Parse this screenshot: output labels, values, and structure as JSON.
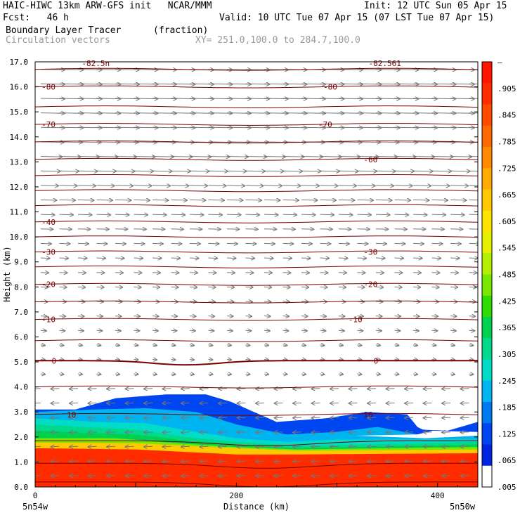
{
  "header": {
    "line1_left": "HAIC-HIWC 13km ARW-GFS init   NCAR/MMM",
    "line1_right": "Init: 12 UTC Sun 05 Apr 15",
    "line2_left": "Fcst:   46 h",
    "line2_right": "Valid: 10 UTC Tue 07 Apr 15 (07 LST Tue 07 Apr 15)",
    "line3_left": "Boundary Layer Tracer",
    "line3_mid": "(fraction)",
    "line4_left": "Circulation vectors",
    "line4_mid": "XY= 251.0,100.0 to 284.7,100.0"
  },
  "chart_data": {
    "type": "cross-section",
    "xlabel": "Distance (km)",
    "ylabel": "Height (km)",
    "xlim": [
      0,
      440
    ],
    "ylim": [
      0,
      17
    ],
    "x_ticks": [
      {
        "value": 0,
        "label": "0"
      },
      {
        "value": 200,
        "label": "200"
      },
      {
        "value": 400,
        "label": "400"
      }
    ],
    "x_end_labels": {
      "left": "5n54w",
      "right": "5n50w"
    },
    "y_ticks": [
      {
        "value": 0,
        "label": "0.0"
      },
      {
        "value": 1,
        "label": "1.0"
      },
      {
        "value": 2,
        "label": "2.0"
      },
      {
        "value": 3,
        "label": "3.0"
      },
      {
        "value": 4,
        "label": "4.0"
      },
      {
        "value": 5,
        "label": "5.0"
      },
      {
        "value": 6,
        "label": "6.0"
      },
      {
        "value": 7,
        "label": "7.0"
      },
      {
        "value": 8,
        "label": "8.0"
      },
      {
        "value": 9,
        "label": "9.0"
      },
      {
        "value": 10,
        "label": "10.0"
      },
      {
        "value": 11,
        "label": "11.0"
      },
      {
        "value": 12,
        "label": "12.0"
      },
      {
        "value": 13,
        "label": "13.0"
      },
      {
        "value": 14,
        "label": "14.0"
      },
      {
        "value": 15,
        "label": "15.0"
      },
      {
        "value": 16,
        "label": "16.0"
      },
      {
        "value": 17,
        "label": "17.0"
      }
    ],
    "colorbar": {
      "labels": [
        "–",
        ".905",
        ".845",
        ".785",
        ".725",
        ".665",
        ".605",
        ".545",
        ".485",
        ".425",
        ".365",
        ".305",
        ".245",
        ".185",
        ".125",
        ".065",
        ".005"
      ],
      "colors": [
        "#ff1500",
        "#ff2c00",
        "#ff4a00",
        "#ff6a00",
        "#ff8a00",
        "#ffaa00",
        "#ffc800",
        "#ffe400",
        "#e6f000",
        "#b4ee00",
        "#78e800",
        "#30dc00",
        "#00d050",
        "#00d88c",
        "#00dcc8",
        "#00b4f0",
        "#0078f0",
        "#0046f0",
        "#0024e0",
        "#ffffff"
      ]
    },
    "temperature_contours": [
      {
        "height": 16.0,
        "labels": [
          {
            "x": 5,
            "text": "-80"
          },
          {
            "x": 285,
            "text": "-80"
          }
        ]
      },
      {
        "height": 14.5,
        "labels": [
          {
            "x": 5,
            "text": "-70"
          },
          {
            "x": 280,
            "text": "-70"
          }
        ]
      },
      {
        "height": 13.1,
        "labels": [
          {
            "x": 325,
            "text": "-60"
          }
        ]
      },
      {
        "height": 10.6,
        "labels": [
          {
            "x": 5,
            "text": "-40"
          }
        ]
      },
      {
        "height": 9.4,
        "labels": [
          {
            "x": 5,
            "text": "-30"
          },
          {
            "x": 325,
            "text": "-30"
          }
        ]
      },
      {
        "height": 8.1,
        "labels": [
          {
            "x": 5,
            "text": "-20"
          },
          {
            "x": 325,
            "text": "-20"
          }
        ]
      },
      {
        "height": 6.7,
        "labels": [
          {
            "x": 5,
            "text": "-10"
          },
          {
            "x": 310,
            "text": "-10"
          }
        ]
      },
      {
        "height": 5.05,
        "labels": [
          {
            "x": 15,
            "text": "0"
          },
          {
            "x": 335,
            "text": "0"
          }
        ]
      },
      {
        "height": 2.9,
        "labels": [
          {
            "x": 30,
            "text": "10"
          },
          {
            "x": 325,
            "text": "10"
          }
        ]
      }
    ],
    "top_labels": [
      {
        "x": 45,
        "text": "-82.5n"
      },
      {
        "x": 330,
        "text": "-82.561"
      }
    ],
    "tracer_layers": [
      {
        "level": 0.005,
        "top": [
          [
            0,
            3.1
          ],
          [
            40,
            3.1
          ],
          [
            80,
            3.55
          ],
          [
            130,
            3.7
          ],
          [
            170,
            3.7
          ],
          [
            195,
            3.4
          ],
          [
            240,
            2.6
          ],
          [
            290,
            2.75
          ],
          [
            330,
            3.0
          ],
          [
            370,
            2.9
          ],
          [
            382,
            2.3
          ],
          [
            410,
            2.25
          ],
          [
            440,
            2.6
          ]
        ]
      },
      {
        "level": 0.065,
        "top": [
          [
            0,
            3.0
          ],
          [
            60,
            3.1
          ],
          [
            110,
            3.15
          ],
          [
            160,
            3.0
          ],
          [
            200,
            2.5
          ],
          [
            250,
            2.1
          ],
          [
            300,
            2.2
          ],
          [
            340,
            2.4
          ],
          [
            380,
            2.1
          ],
          [
            440,
            2.1
          ]
        ]
      },
      {
        "level": 0.125,
        "top": [
          [
            0,
            2.75
          ],
          [
            60,
            2.6
          ],
          [
            110,
            2.55
          ],
          [
            160,
            2.2
          ],
          [
            200,
            1.95
          ],
          [
            250,
            1.8
          ],
          [
            300,
            1.9
          ],
          [
            350,
            1.9
          ],
          [
            440,
            1.9
          ]
        ]
      },
      {
        "level": 0.185,
        "top": [
          [
            0,
            2.5
          ],
          [
            50,
            2.4
          ],
          [
            100,
            2.3
          ],
          [
            150,
            2.0
          ],
          [
            200,
            1.8
          ],
          [
            260,
            1.65
          ],
          [
            440,
            1.8
          ]
        ]
      },
      {
        "level": 0.305,
        "top": [
          [
            0,
            2.25
          ],
          [
            60,
            2.15
          ],
          [
            100,
            2.1
          ],
          [
            140,
            1.9
          ],
          [
            200,
            1.7
          ],
          [
            260,
            1.55
          ],
          [
            440,
            1.7
          ]
        ]
      },
      {
        "level": 0.485,
        "top": [
          [
            0,
            1.95
          ],
          [
            80,
            1.95
          ],
          [
            140,
            1.75
          ],
          [
            200,
            1.6
          ],
          [
            260,
            1.5
          ],
          [
            440,
            1.6
          ]
        ]
      },
      {
        "level": 0.725,
        "top": [
          [
            0,
            1.78
          ],
          [
            100,
            1.75
          ],
          [
            200,
            1.55
          ],
          [
            260,
            1.45
          ],
          [
            440,
            1.5
          ]
        ]
      },
      {
        "level": 0.905,
        "top": [
          [
            0,
            1.55
          ],
          [
            100,
            1.5
          ],
          [
            200,
            1.3
          ],
          [
            260,
            1.3
          ],
          [
            440,
            1.35
          ]
        ]
      }
    ]
  }
}
